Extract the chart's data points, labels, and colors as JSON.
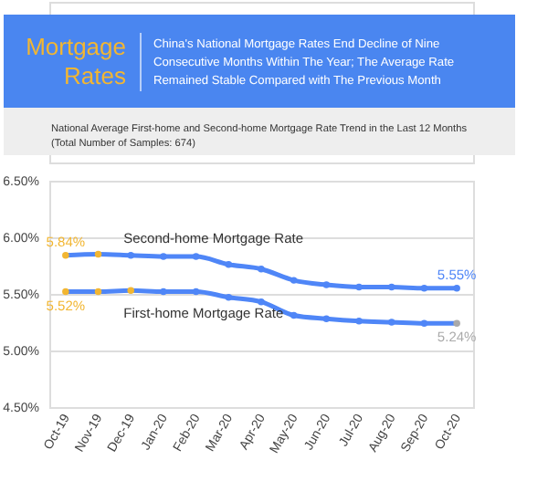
{
  "chart_data": {
    "type": "line",
    "title": "Mortgage Rates",
    "subtitle": "China's National Mortgage Rates End Decline of Nine Consecutive Months Within The Year; The Average Rate Remained Stable Compared with The Previous Month",
    "annotations": [
      "National Average First-home and Second-home Mortgage Rate Trend in the Last 12 Months",
      "(Total Number of Samples: 674)"
    ],
    "categories": [
      "Oct-19",
      "Nov-19",
      "Dec-19",
      "Jan-20",
      "Feb-20",
      "Mar-20",
      "Apr-20",
      "May-20",
      "Jun-20",
      "Jul-20",
      "Aug-20",
      "Sep-20",
      "Oct-20"
    ],
    "series": [
      {
        "name": "Second-home Mortgage Rate",
        "color": "#4f86f7",
        "values": [
          5.84,
          5.85,
          5.84,
          5.83,
          5.83,
          5.76,
          5.72,
          5.62,
          5.58,
          5.56,
          5.56,
          5.55,
          5.55
        ],
        "colors": [
          "#f2b632",
          "#f2b632",
          "#4f86f7",
          "#4f86f7",
          "#4f86f7",
          "#4f86f7",
          "#4f86f7",
          "#4f86f7",
          "#4f86f7",
          "#4f86f7",
          "#4f86f7",
          "#4f86f7",
          "#4f86f7"
        ],
        "value_labels": [
          "5.84%",
          null,
          null,
          null,
          null,
          null,
          null,
          null,
          null,
          null,
          null,
          null,
          "5.55%"
        ]
      },
      {
        "name": "First-home Mortgage Rate",
        "color": "#4f86f7",
        "values": [
          5.52,
          5.52,
          5.53,
          5.52,
          5.52,
          5.47,
          5.43,
          5.31,
          5.28,
          5.26,
          5.25,
          5.24,
          5.24
        ],
        "colors": [
          "#f2b632",
          "#f2b632",
          "#f2b632",
          "#4f86f7",
          "#4f86f7",
          "#4f86f7",
          "#4f86f7",
          "#4f86f7",
          "#4f86f7",
          "#4f86f7",
          "#4f86f7",
          "#4f86f7",
          "#aaaaaa"
        ],
        "value_labels": [
          "5.52%",
          null,
          null,
          null,
          null,
          null,
          null,
          null,
          null,
          null,
          null,
          null,
          "5.24%"
        ]
      }
    ],
    "ylim": [
      4.5,
      6.5
    ],
    "yticks": [
      {
        "value": 4.5,
        "label": "4.50%"
      },
      {
        "value": 5.0,
        "label": "5.00%"
      },
      {
        "value": 5.5,
        "label": "5.50%"
      },
      {
        "value": 6.0,
        "label": "6.00%"
      },
      {
        "value": 6.5,
        "label": "6.50%"
      }
    ],
    "grid": "y",
    "marker": "circle",
    "line_style": "solid"
  }
}
